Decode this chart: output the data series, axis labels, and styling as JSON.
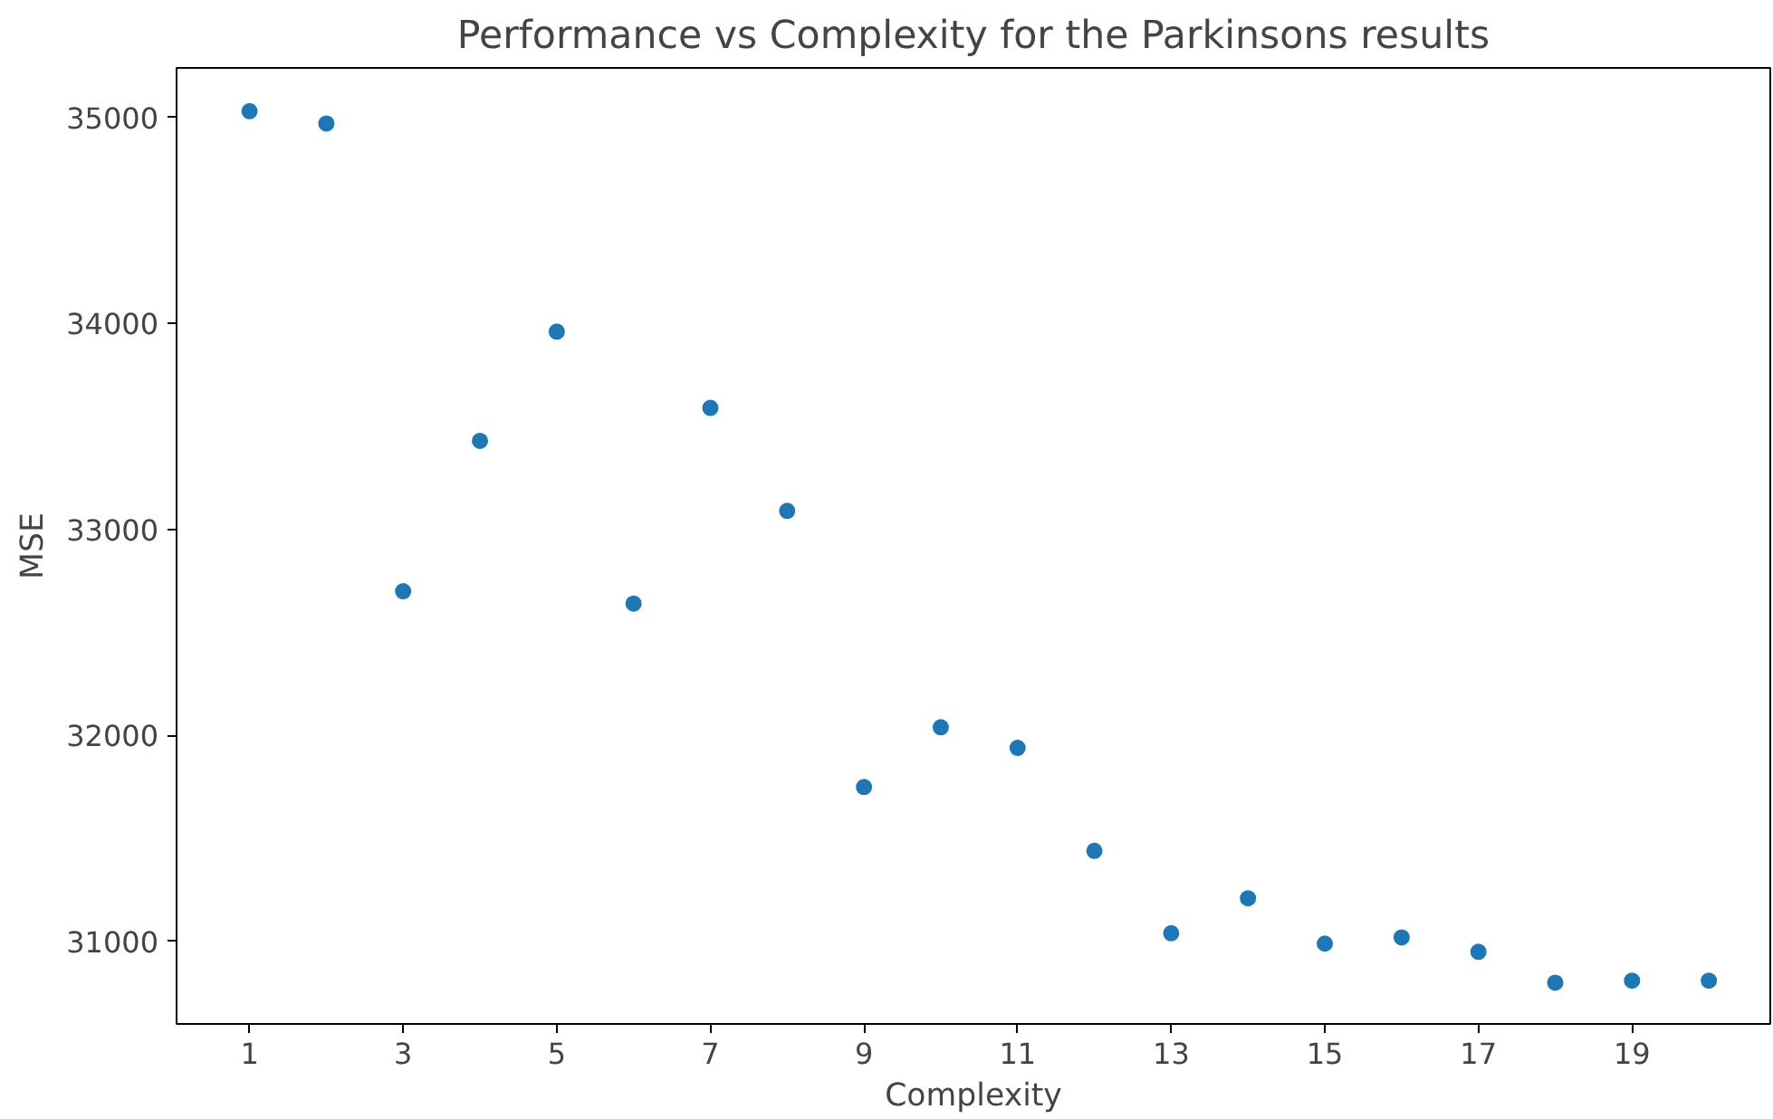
{
  "chart_data": {
    "type": "scatter",
    "title": "Performance vs Complexity for the Parkinsons results",
    "xlabel": "Complexity",
    "ylabel": "MSE",
    "x": [
      1,
      2,
      3,
      4,
      5,
      6,
      7,
      8,
      9,
      10,
      11,
      12,
      13,
      14,
      15,
      16,
      17,
      18,
      19,
      20
    ],
    "series": [
      {
        "color": "#1f77b4",
        "values": [
          35030,
          34970,
          32700,
          33430,
          33960,
          32640,
          33590,
          33090,
          31750,
          32040,
          31940,
          31440,
          31040,
          31210,
          30990,
          31020,
          30950,
          30800,
          30810,
          30810
        ]
      }
    ],
    "xlim": [
      0.05,
      20.8
    ],
    "xticks": [
      1,
      3,
      5,
      7,
      9,
      11,
      13,
      15,
      17,
      19
    ],
    "ylim": [
      30600,
      35240
    ],
    "yticks": [
      31000,
      32000,
      33000,
      34000,
      35000
    ],
    "grid": false,
    "marker": "circle"
  }
}
